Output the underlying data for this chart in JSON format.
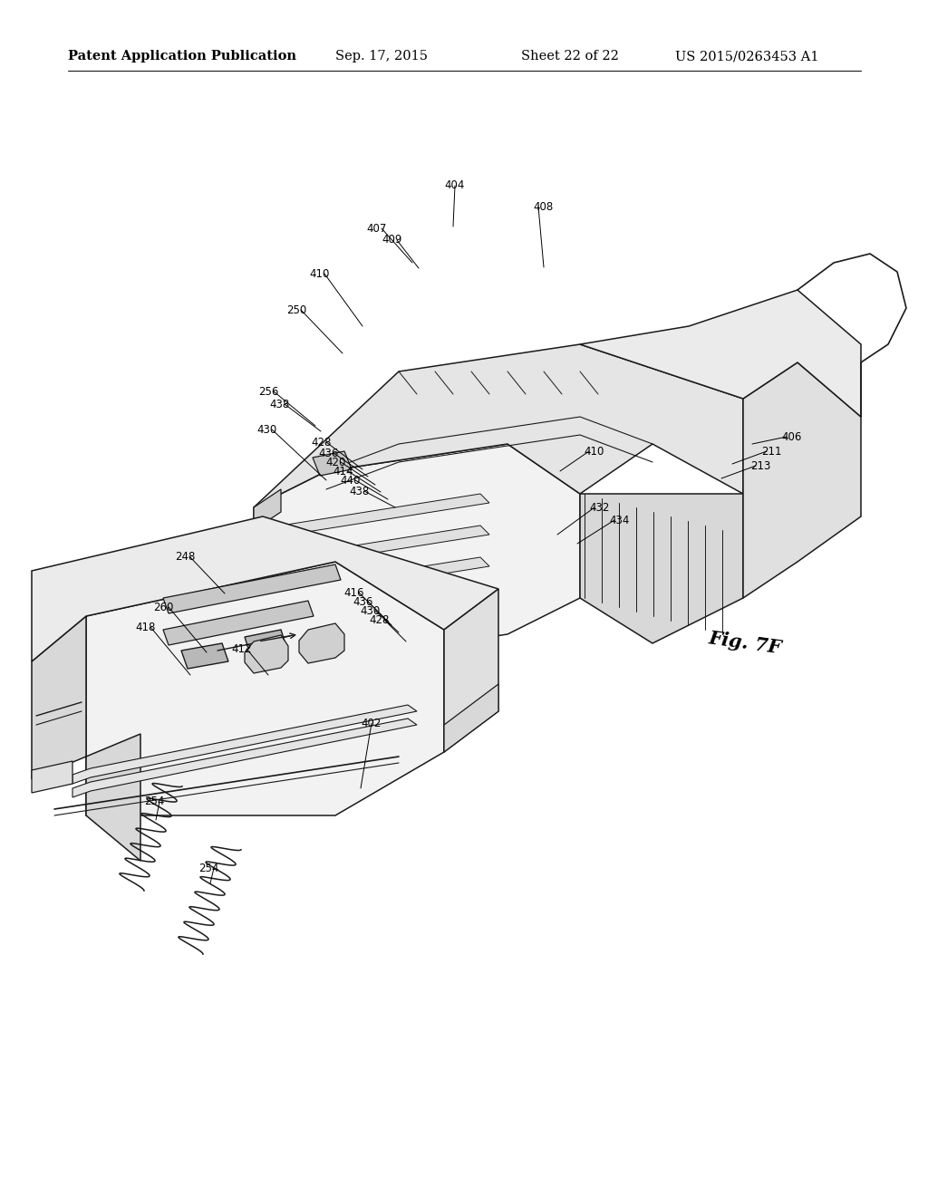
{
  "title": "Patent Application Publication",
  "date": "Sep. 17, 2015",
  "sheet": "Sheet 22 of 22",
  "patent_num": "US 2015/0263453 A1",
  "fig_label": "Fig. 7F",
  "background": "#ffffff",
  "line_color": "#1a1a1a",
  "header_fontsize": 10.5,
  "fig_label_fontsize": 15,
  "label_fontsize": 8.5
}
